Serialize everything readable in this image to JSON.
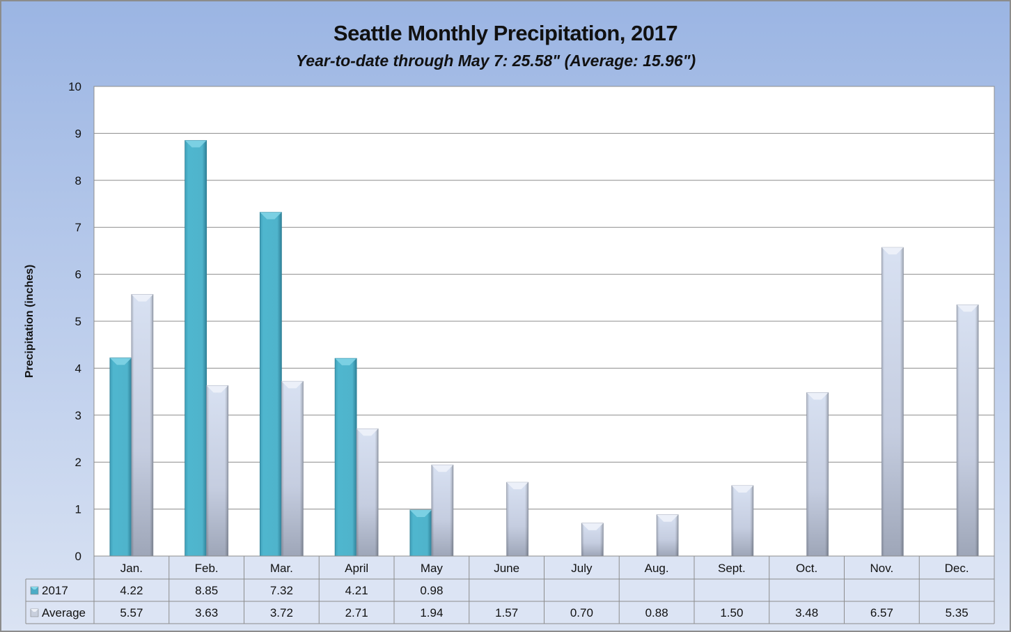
{
  "chart_data": {
    "type": "bar",
    "title": "Seattle Monthly Precipitation, 2017",
    "subtitle": "Year-to-date through May 7: 25.58\" (Average: 15.96\")",
    "xlabel": "",
    "ylabel": "Precipitation (inches)",
    "ylim": [
      0,
      10
    ],
    "yticks": [
      0,
      1,
      2,
      3,
      4,
      5,
      6,
      7,
      8,
      9,
      10
    ],
    "grid": true,
    "legend": "data-table-bottom",
    "categories": [
      "Jan.",
      "Feb.",
      "Mar.",
      "April",
      "May",
      "June",
      "July",
      "Aug.",
      "Sept.",
      "Oct.",
      "Nov.",
      "Dec."
    ],
    "series": [
      {
        "name": "2017",
        "color": "#4bacc6",
        "values": [
          4.22,
          8.85,
          7.32,
          4.21,
          0.98,
          null,
          null,
          null,
          null,
          null,
          null,
          null
        ],
        "labels": [
          "4.22",
          "8.85",
          "7.32",
          "4.21",
          "0.98",
          "",
          "",
          "",
          "",
          "",
          "",
          ""
        ]
      },
      {
        "name": "Average",
        "color": "#d3dcee",
        "values": [
          5.57,
          3.63,
          3.72,
          2.71,
          1.94,
          1.57,
          0.7,
          0.88,
          1.5,
          3.48,
          6.57,
          5.35
        ],
        "labels": [
          "5.57",
          "3.63",
          "3.72",
          "2.71",
          "1.94",
          "1.57",
          "0.70",
          "0.88",
          "1.50",
          "3.48",
          "6.57",
          "5.35"
        ]
      }
    ]
  }
}
